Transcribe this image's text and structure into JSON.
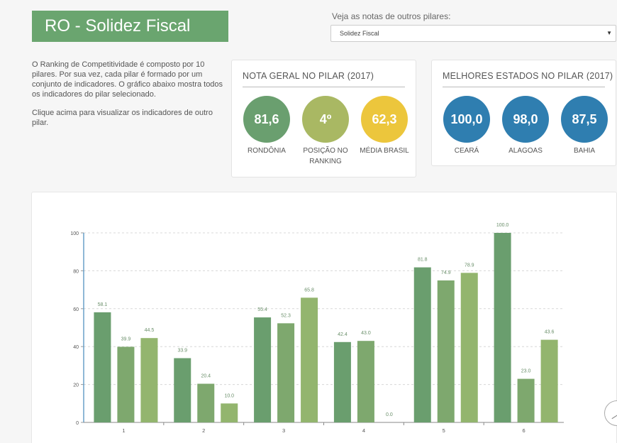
{
  "header": {
    "title": "RO - Solidez Fiscal"
  },
  "selector": {
    "label": "Veja as notas de outros pilares:",
    "selected": "Solidez Fiscal",
    "arrow_icon": "caret-down-icon"
  },
  "intro": {
    "p1": "O Ranking de Competitividade é composto por 10 pilares. Por sua vez, cada pilar é formado por um conjunto de indicadores. O gráfico abaixo mostra todos os indicadores do pilar selecionado.",
    "p2": "Clique acima para visualizar os indicadores de outro pilar."
  },
  "nota_geral": {
    "title": "NOTA GERAL NO PILAR (2017)",
    "items": [
      {
        "value": "81,6",
        "label": "RONDÔNIA",
        "color": "#6a9f6f"
      },
      {
        "value": "4º",
        "label": "POSIÇÃO NO RANKING",
        "color": "#a9b863"
      },
      {
        "value": "62,3",
        "label": "MÉDIA BRASIL",
        "color": "#ecc63c"
      }
    ]
  },
  "melhores": {
    "title": "MELHORES ESTADOS NO PILAR (2017)",
    "items": [
      {
        "value": "100,0",
        "label": "CEARÁ",
        "color": "#2f7eb0"
      },
      {
        "value": "98,0",
        "label": "ALAGOAS",
        "color": "#2f7eb0"
      },
      {
        "value": "87,5",
        "label": "BAHIA",
        "color": "#2f7eb0"
      }
    ]
  },
  "chart_data": {
    "type": "bar",
    "categories": [
      "1",
      "2",
      "3",
      "4",
      "5",
      "6"
    ],
    "ylim": [
      0,
      100
    ],
    "yticks": [
      0,
      20,
      40,
      60,
      80,
      100
    ],
    "series_colors": [
      "#6a9e6e",
      "#7ea86e",
      "#93b56e"
    ],
    "series": [
      {
        "values": [
          58.1,
          33.9,
          55.4,
          42.4,
          81.8,
          100.0
        ]
      },
      {
        "values": [
          39.9,
          20.4,
          52.3,
          43.0,
          74.9,
          23.0
        ]
      },
      {
        "values": [
          44.5,
          10.0,
          65.8,
          0.0,
          78.9,
          43.6
        ]
      }
    ]
  },
  "scroll_top_icon": "chevron-up-icon"
}
